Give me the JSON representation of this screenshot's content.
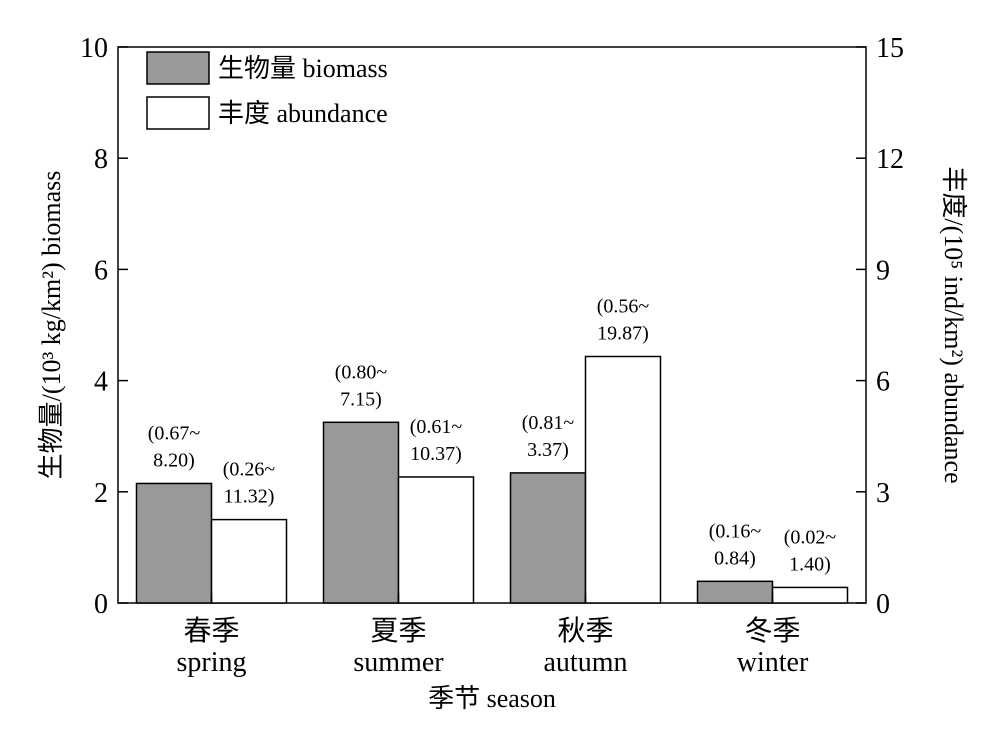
{
  "chart_data": {
    "type": "bar",
    "categories": [
      {
        "zh": "春季",
        "en": "spring"
      },
      {
        "zh": "夏季",
        "en": "summer"
      },
      {
        "zh": "秋季",
        "en": "autumn"
      },
      {
        "zh": "冬季",
        "en": "winter"
      }
    ],
    "series": [
      {
        "name": "生物量 biomass",
        "axis": "left",
        "color": "#999999",
        "values": [
          2.15,
          3.25,
          2.34,
          0.39
        ],
        "ranges": [
          [
            "(0.67~",
            "8.20)"
          ],
          [
            "(0.80~",
            "7.15)"
          ],
          [
            "(0.81~",
            "3.37)"
          ],
          [
            "(0.16~",
            "0.84)"
          ]
        ]
      },
      {
        "name": "丰度 abundance",
        "axis": "right",
        "color": "#ffffff",
        "values": [
          2.25,
          3.4,
          6.65,
          0.42
        ],
        "ranges": [
          [
            "(0.26~",
            "11.32)"
          ],
          [
            "(0.61~",
            "10.37)"
          ],
          [
            "(0.56~",
            "19.87)"
          ],
          [
            "(0.02~",
            "1.40)"
          ]
        ]
      }
    ],
    "xlabel": "季节 season",
    "ylabel_left": "生物量/(10³ kg/km²) biomass",
    "ylabel_right": "丰度/(10⁵ ind/km²) abundance",
    "ylim_left": [
      0,
      10
    ],
    "ylim_right": [
      0,
      15
    ],
    "yticks_left": [
      0,
      2,
      4,
      6,
      8,
      10
    ],
    "yticks_right": [
      0,
      3,
      6,
      9,
      12,
      15
    ],
    "legend_position": "top-left",
    "grid": false
  }
}
